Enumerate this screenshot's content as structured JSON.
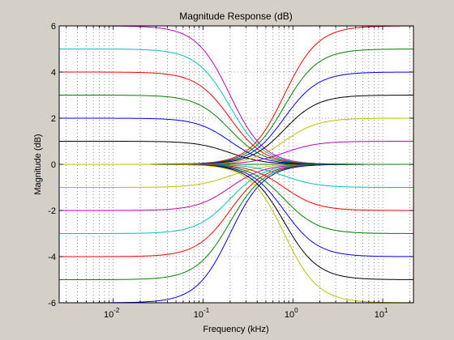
{
  "chart_data": {
    "type": "line",
    "title": "Magnitude Response (dB)",
    "xlabel": "Frequency (kHz)",
    "ylabel": "Magnitude (dB)",
    "xscale": "log",
    "xlim": [
      0.0025,
      22
    ],
    "ylim": [
      -6,
      6
    ],
    "grid": true,
    "legend": "none",
    "background_color": "#ffffff",
    "figure_color": "#d4d0c8",
    "x_ticks": [
      {
        "base": "10",
        "exp": "-2",
        "value": 0.01
      },
      {
        "base": "10",
        "exp": "-1",
        "value": 0.1
      },
      {
        "base": "10",
        "exp": "0",
        "value": 1
      },
      {
        "base": "10",
        "exp": "1",
        "value": 10
      }
    ],
    "y_ticks": [
      {
        "label": "6",
        "value": 6
      },
      {
        "label": "4",
        "value": 4
      },
      {
        "label": "2",
        "value": 2
      },
      {
        "label": "0",
        "value": 0
      },
      {
        "label": "-2",
        "value": -2
      },
      {
        "label": "-4",
        "value": -4
      },
      {
        "label": "-6",
        "value": -6
      }
    ],
    "series_description": "Low-shelf and high-shelf responses; crossover near 0.4 kHz",
    "low_shelf_center_khz": 0.2,
    "high_shelf_center_khz": 0.8,
    "series": [
      {
        "kind": "low_shelf",
        "low_gain": 6,
        "high_gain": 0,
        "color": "#bf00bf"
      },
      {
        "kind": "low_shelf",
        "low_gain": 5,
        "high_gain": 0,
        "color": "#00bfbf"
      },
      {
        "kind": "low_shelf",
        "low_gain": 4,
        "high_gain": 0,
        "color": "#ff0000"
      },
      {
        "kind": "low_shelf",
        "low_gain": 3,
        "high_gain": 0,
        "color": "#008000"
      },
      {
        "kind": "low_shelf",
        "low_gain": 2,
        "high_gain": 0,
        "color": "#0000ff"
      },
      {
        "kind": "low_shelf",
        "low_gain": 1,
        "high_gain": 0,
        "color": "#000000"
      },
      {
        "kind": "low_shelf",
        "low_gain": 0,
        "high_gain": 0,
        "color": "#ff0000"
      },
      {
        "kind": "low_shelf",
        "low_gain": -1,
        "high_gain": 0,
        "color": "#bfbf00"
      },
      {
        "kind": "low_shelf",
        "low_gain": -2,
        "high_gain": 0,
        "color": "#bf00bf"
      },
      {
        "kind": "low_shelf",
        "low_gain": -3,
        "high_gain": 0,
        "color": "#00bfbf"
      },
      {
        "kind": "low_shelf",
        "low_gain": -4,
        "high_gain": 0,
        "color": "#ff0000"
      },
      {
        "kind": "low_shelf",
        "low_gain": -5,
        "high_gain": 0,
        "color": "#008000"
      },
      {
        "kind": "low_shelf",
        "low_gain": -6,
        "high_gain": 0,
        "color": "#0000ff"
      },
      {
        "kind": "high_shelf",
        "low_gain": 0,
        "high_gain": 6,
        "color": "#ff0000"
      },
      {
        "kind": "high_shelf",
        "low_gain": 0,
        "high_gain": 5,
        "color": "#008000"
      },
      {
        "kind": "high_shelf",
        "low_gain": 0,
        "high_gain": 4,
        "color": "#0000ff"
      },
      {
        "kind": "high_shelf",
        "low_gain": 0,
        "high_gain": 3,
        "color": "#000000"
      },
      {
        "kind": "high_shelf",
        "low_gain": 0,
        "high_gain": 2,
        "color": "#bfbf00"
      },
      {
        "kind": "high_shelf",
        "low_gain": 0,
        "high_gain": 1,
        "color": "#bf00bf"
      },
      {
        "kind": "high_shelf",
        "low_gain": 0,
        "high_gain": 0,
        "color": "#008000"
      },
      {
        "kind": "high_shelf",
        "low_gain": 0,
        "high_gain": -1,
        "color": "#00bfbf"
      },
      {
        "kind": "high_shelf",
        "low_gain": 0,
        "high_gain": -2,
        "color": "#ff0000"
      },
      {
        "kind": "high_shelf",
        "low_gain": 0,
        "high_gain": -3,
        "color": "#008000"
      },
      {
        "kind": "high_shelf",
        "low_gain": 0,
        "high_gain": -4,
        "color": "#0000ff"
      },
      {
        "kind": "high_shelf",
        "low_gain": 0,
        "high_gain": -5,
        "color": "#000000"
      },
      {
        "kind": "high_shelf",
        "low_gain": 0,
        "high_gain": -6,
        "color": "#bfbf00"
      }
    ]
  }
}
